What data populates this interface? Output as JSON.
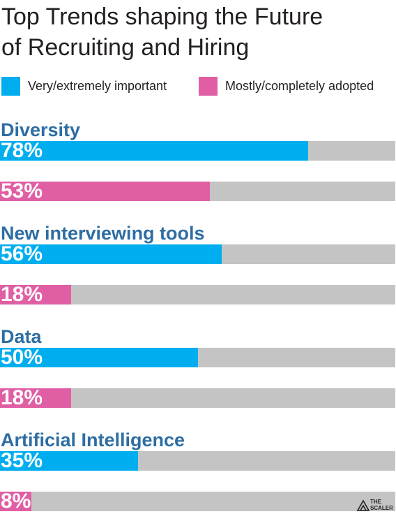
{
  "title_line1": "Top Trends shaping the Future",
  "title_line2": "of Recruiting and Hiring",
  "colors": {
    "important": "#00aeef",
    "adopted": "#e05fa4",
    "track": "#c4c4c4",
    "label": "#2d6da3"
  },
  "logo": {
    "line1": "THE",
    "line2": "SCALERS"
  },
  "chart_data": {
    "type": "bar",
    "orientation": "horizontal",
    "title": "Top Trends shaping the Future of Recruiting and Hiring",
    "xlim": [
      0,
      100
    ],
    "grid": false,
    "legend_placement": "top",
    "categories": [
      "Diversity",
      "New interviewing tools",
      "Data",
      "Artificial Intelligence"
    ],
    "series": [
      {
        "name": "Very/extremely important",
        "values": [
          78,
          56,
          50,
          35
        ],
        "labels": [
          "78%",
          "56%",
          "50%",
          "35%"
        ]
      },
      {
        "name": "Mostly/completely adopted",
        "values": [
          53,
          18,
          18,
          8
        ],
        "labels": [
          "53%",
          "18%",
          "18%",
          "8%"
        ]
      }
    ]
  }
}
